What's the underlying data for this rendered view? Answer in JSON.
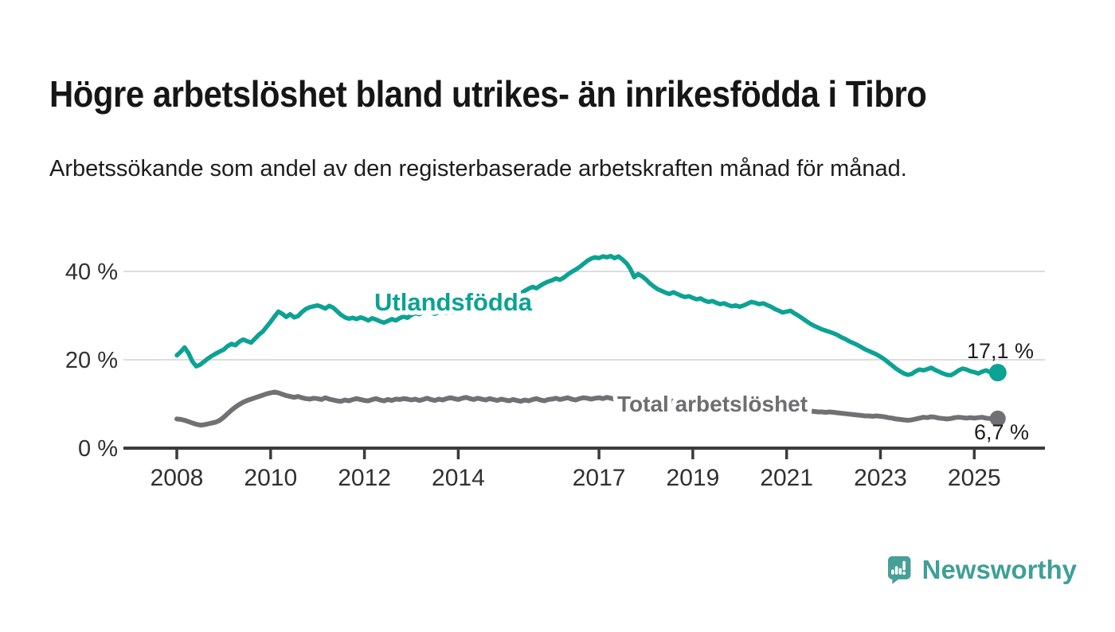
{
  "header": {
    "title": "Högre arbetslöshet bland utrikes- än inrikesfödda i Tibro",
    "subtitle": "Arbetssökande som andel av den registerbaserade arbetskraften månad för månad."
  },
  "footer": {
    "brand": "Newsworthy"
  },
  "colors": {
    "accent_teal": "#0ca294",
    "series_gray": "#717175",
    "label_gray": "#6e6e72",
    "axis": "#3b3b3b",
    "grid": "#dcdcdc",
    "tick_text": "#303030",
    "value_text": "#1c1c1c",
    "logo_teal": "#46a098",
    "wordmark_teal": "#3f9f98"
  },
  "chart_data": {
    "type": "line",
    "title": "Högre arbetslöshet bland utrikes- än inrikesfödda i Tibro",
    "xlabel": "",
    "ylabel": "",
    "x_unit": "year-month",
    "x_start_year": 2008,
    "x_step_months": 1,
    "x_ticks": [
      2008,
      2010,
      2012,
      2014,
      2017,
      2019,
      2021,
      2023,
      2025
    ],
    "y_ticks": [
      {
        "value": 0,
        "label": "0 %"
      },
      {
        "value": 20,
        "label": "20 %"
      },
      {
        "value": 40,
        "label": "40 %"
      }
    ],
    "ylim": [
      0,
      47
    ],
    "grid": "horizontal",
    "legend_position": "inline-labels",
    "series": [
      {
        "name": "Total arbetslöshet",
        "end_label": "6,7 %",
        "end_value": 6.7,
        "values": [
          6.6,
          6.5,
          6.3,
          6.0,
          5.7,
          5.4,
          5.2,
          5.3,
          5.5,
          5.7,
          5.9,
          6.3,
          7.0,
          7.8,
          8.6,
          9.3,
          9.9,
          10.4,
          10.8,
          11.1,
          11.4,
          11.7,
          12.0,
          12.3,
          12.5,
          12.7,
          12.5,
          12.2,
          11.9,
          11.7,
          11.5,
          11.7,
          11.4,
          11.2,
          11.1,
          11.3,
          11.2,
          11.0,
          11.4,
          11.1,
          10.9,
          10.7,
          10.6,
          10.9,
          10.7,
          11.0,
          11.2,
          11.0,
          10.8,
          10.7,
          11.0,
          11.2,
          10.9,
          10.7,
          11.0,
          10.8,
          11.1,
          11.0,
          11.2,
          11.1,
          10.9,
          11.1,
          10.8,
          11.0,
          11.3,
          11.0,
          10.8,
          11.1,
          10.9,
          11.2,
          11.4,
          11.2,
          11.0,
          11.3,
          11.5,
          11.2,
          11.0,
          11.3,
          11.1,
          10.9,
          11.2,
          11.0,
          10.8,
          11.1,
          10.9,
          10.7,
          11.0,
          10.8,
          10.6,
          10.9,
          10.7,
          11.0,
          11.2,
          10.9,
          10.7,
          11.0,
          11.1,
          11.3,
          11.0,
          11.2,
          11.4,
          11.1,
          10.9,
          11.2,
          11.4,
          11.3,
          11.1,
          11.3,
          11.4,
          11.2,
          11.5,
          11.3,
          11.1,
          11.4,
          11.2,
          11.0,
          11.3,
          11.1,
          10.9,
          11.2,
          11.0,
          10.8,
          11.1,
          10.9,
          10.7,
          11.0,
          10.8,
          10.6,
          10.9,
          10.7,
          10.5,
          10.8,
          10.6,
          10.4,
          10.7,
          10.5,
          10.3,
          10.6,
          10.4,
          10.2,
          10.5,
          10.3,
          10.1,
          10.4,
          10.6,
          10.8,
          11.0,
          11.2,
          11.0,
          10.8,
          10.6,
          10.4,
          10.2,
          10.0,
          9.8,
          9.6,
          9.4,
          9.2,
          9.0,
          8.8,
          8.6,
          8.5,
          8.4,
          8.3,
          8.2,
          8.2,
          8.1,
          8.2,
          8.1,
          8.0,
          7.9,
          7.8,
          7.7,
          7.6,
          7.5,
          7.4,
          7.3,
          7.3,
          7.2,
          7.3,
          7.2,
          7.1,
          6.9,
          6.8,
          6.6,
          6.5,
          6.4,
          6.3,
          6.4,
          6.6,
          6.8,
          7.0,
          6.9,
          7.1,
          7.0,
          6.8,
          6.7,
          6.6,
          6.7,
          6.9,
          7.0,
          6.9,
          6.8,
          6.9,
          6.8,
          6.9,
          7.0,
          6.8,
          6.7,
          6.6,
          6.7
        ]
      },
      {
        "name": "Utlandsfödda",
        "end_label": "17,1 %",
        "end_value": 17.1,
        "values": [
          21.0,
          21.8,
          22.8,
          21.5,
          19.6,
          18.5,
          18.9,
          19.6,
          20.3,
          20.9,
          21.4,
          21.9,
          22.3,
          23.1,
          23.6,
          23.3,
          24.1,
          24.6,
          24.2,
          23.9,
          24.8,
          25.7,
          26.4,
          27.5,
          28.6,
          29.8,
          30.9,
          30.4,
          29.7,
          30.3,
          29.6,
          29.9,
          30.8,
          31.5,
          31.9,
          32.1,
          32.3,
          32.0,
          31.6,
          32.2,
          31.8,
          31.0,
          30.2,
          29.6,
          29.3,
          29.5,
          29.2,
          29.6,
          29.3,
          28.9,
          29.4,
          29.1,
          28.7,
          28.4,
          28.8,
          29.2,
          28.9,
          29.4,
          29.8,
          29.5,
          30.1,
          30.6,
          30.3,
          30.8,
          31.1,
          30.7,
          30.4,
          30.8,
          31.0,
          30.6,
          30.9,
          30.7,
          31.0,
          31.4,
          31.2,
          31.6,
          32.0,
          31.7,
          32.1,
          32.5,
          32.3,
          32.8,
          33.2,
          33.6,
          34.0,
          34.5,
          34.9,
          35.3,
          35.0,
          35.6,
          36.1,
          36.5,
          36.2,
          36.8,
          37.3,
          37.7,
          38.0,
          38.4,
          38.1,
          38.6,
          39.3,
          39.9,
          40.4,
          41.0,
          41.7,
          42.4,
          42.9,
          43.2,
          43.0,
          43.4,
          43.2,
          43.5,
          43.0,
          43.4,
          42.7,
          41.9,
          40.6,
          38.7,
          39.4,
          38.9,
          38.2,
          37.3,
          36.6,
          36.0,
          35.6,
          35.2,
          34.9,
          35.3,
          34.9,
          34.5,
          34.2,
          34.4,
          34.0,
          33.7,
          33.9,
          33.4,
          33.1,
          33.3,
          32.9,
          32.6,
          32.8,
          32.4,
          32.1,
          32.3,
          32.0,
          32.3,
          32.7,
          33.1,
          32.9,
          32.6,
          32.8,
          32.4,
          32.0,
          31.5,
          31.1,
          30.7,
          30.9,
          31.1,
          30.5,
          30.0,
          29.4,
          28.8,
          28.2,
          27.7,
          27.3,
          26.9,
          26.6,
          26.3,
          26.0,
          25.6,
          25.1,
          24.7,
          24.2,
          23.8,
          23.4,
          22.9,
          22.4,
          22.0,
          21.6,
          21.2,
          20.7,
          20.1,
          19.4,
          18.7,
          18.0,
          17.4,
          16.9,
          16.6,
          16.8,
          17.4,
          17.8,
          17.6,
          17.9,
          18.2,
          17.7,
          17.3,
          16.9,
          16.6,
          16.5,
          17.0,
          17.6,
          18.0,
          17.8,
          17.4,
          17.2,
          16.9,
          17.3,
          17.6,
          17.2,
          16.9,
          17.1
        ]
      }
    ]
  }
}
